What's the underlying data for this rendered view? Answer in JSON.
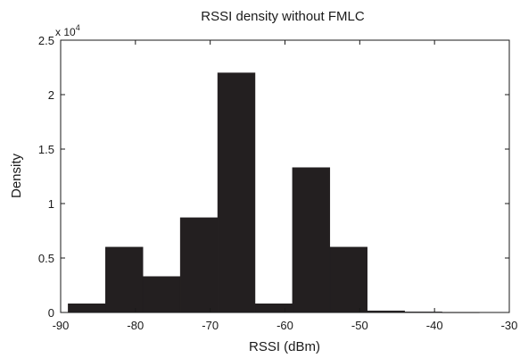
{
  "chart_data": {
    "type": "bar",
    "title": "RSSI density without FMLC",
    "xlabel": "RSSI (dBm)",
    "ylabel": "Density",
    "xlim": [
      -90,
      -30
    ],
    "ylim": [
      0,
      2.5
    ],
    "y_multiplier_text": "x 10",
    "y_multiplier_exponent": "4",
    "xticks": [
      -90,
      -80,
      -70,
      -60,
      -50,
      -40,
      -30
    ],
    "xtick_labels": [
      "-90",
      "-80",
      "-70",
      "-60",
      "-50",
      "-40",
      "-30"
    ],
    "yticks": [
      0,
      0.5,
      1,
      1.5,
      2,
      2.5
    ],
    "ytick_labels": [
      "0",
      "0.5",
      "1",
      "1.5",
      "2",
      "2.5"
    ],
    "bin_edges": [
      -89,
      -84,
      -79,
      -74,
      -69,
      -64,
      -59,
      -54,
      -49,
      -44,
      -39,
      -34
    ],
    "values": [
      0.08,
      0.6,
      0.33,
      0.87,
      2.2,
      0.08,
      1.33,
      0.6,
      0.015,
      0.005,
      0.002
    ],
    "grid": false,
    "legend": "none"
  }
}
